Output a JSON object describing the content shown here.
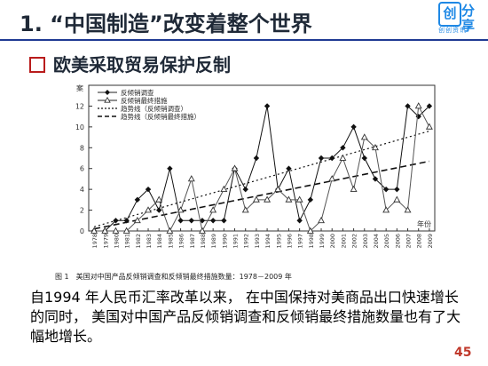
{
  "header": {
    "title": "1. “中国制造”改变着整个世界",
    "logo": {
      "box_glyph": "创",
      "right_top": "分",
      "right_bottom": "享",
      "small": "创创资讯"
    }
  },
  "section": {
    "subtitle": "欧美采取贸易保护反制"
  },
  "chart_data": {
    "type": "line",
    "title": "",
    "caption": "图 1　美国对中国产品反倾销调查和反倾销最终措施数量：1978－2009 年",
    "xlabel": "年份",
    "ylabel": "案",
    "ylim": [
      0,
      14
    ],
    "yticks": [
      0,
      2,
      4,
      6,
      8,
      10,
      12
    ],
    "x": [
      1978,
      1979,
      1980,
      1981,
      1982,
      1983,
      1984,
      1985,
      1986,
      1987,
      1988,
      1989,
      1990,
      1991,
      1992,
      1993,
      1994,
      1995,
      1996,
      1997,
      1998,
      1999,
      2000,
      2001,
      2002,
      2003,
      2004,
      2005,
      2006,
      2007,
      2008,
      2009
    ],
    "x_tick_labels": [
      "1978",
      "1979",
      "1980",
      "1981",
      "1982",
      "1983",
      "1984",
      "1985",
      "1986",
      "1987",
      "1988",
      "1989",
      "1990",
      "1991",
      "1992",
      "1993",
      "1994",
      "1995",
      "1996",
      "1997",
      "1998",
      "1999",
      "2000",
      "2001",
      "2002",
      "2003",
      "2004",
      "2005",
      "2006",
      "2007",
      "2008",
      "2009"
    ],
    "series": [
      {
        "name": "反倾销调查",
        "marker": "diamond",
        "style": "solid",
        "values": [
          0,
          0,
          1,
          1,
          3,
          4,
          2,
          6,
          1,
          1,
          1,
          1,
          1,
          6,
          4,
          7,
          12,
          4,
          6,
          1,
          3,
          7,
          7,
          8,
          10,
          7,
          5,
          4,
          4,
          12,
          11,
          12
        ]
      },
      {
        "name": "反倾销最终措施",
        "marker": "triangle",
        "style": "solid",
        "values": [
          0,
          0,
          0,
          0,
          1,
          2,
          3,
          0,
          2,
          5,
          0,
          2,
          4,
          6,
          2,
          3,
          3,
          4,
          3,
          3,
          0,
          1,
          5,
          7,
          4,
          9,
          8,
          2,
          3,
          2,
          12,
          10
        ]
      }
    ],
    "trends": [
      {
        "name": "趋势线（反倾销调查）",
        "style": "dotted",
        "from": 0.4,
        "to": 9.6
      },
      {
        "name": "趋势线（反倾销最终措施）",
        "style": "dashed",
        "from": 0.2,
        "to": 6.7
      }
    ],
    "legend_position": "top-left"
  },
  "body": {
    "paragraph": "自1994 年人民币汇率改革以来， 在中国保持对美商品出口快速增长的同时， 美国对中国产品反倾销调查和反倾销最终措施数量也有了大幅地增长。"
  },
  "footer": {
    "page_number": "45"
  }
}
